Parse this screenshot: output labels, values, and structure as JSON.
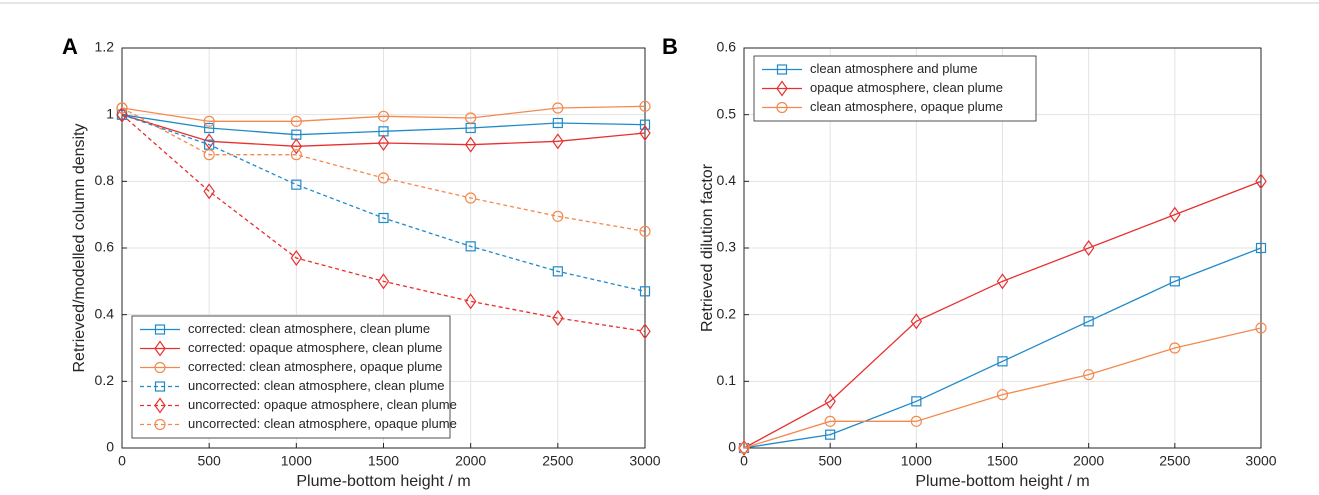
{
  "chart_data": [
    {
      "type": "line",
      "panel_label": "A",
      "xlabel": "Plume-bottom height / m",
      "ylabel": "Retrieved/modelled column density",
      "x": [
        0,
        500,
        1000,
        1500,
        2000,
        2500,
        3000
      ],
      "xlim": [
        0,
        3000
      ],
      "xticks": [
        0,
        500,
        1000,
        1500,
        2000,
        2500,
        3000
      ],
      "ylim": [
        0,
        1.2
      ],
      "yticks": [
        0,
        0.2,
        0.4,
        0.6,
        0.8,
        1,
        1.2
      ],
      "grid": true,
      "legend": "lower left",
      "series": [
        {
          "name": "corrected: clean atmosphere, clean plume",
          "color": "#1f8ac9",
          "marker": "square",
          "dashed": false,
          "values": [
            1.0,
            0.96,
            0.94,
            0.95,
            0.96,
            0.975,
            0.97
          ]
        },
        {
          "name": "corrected: opaque atmosphere, clean plume",
          "color": "#e8302f",
          "marker": "diamond",
          "dashed": false,
          "values": [
            1.0,
            0.92,
            0.905,
            0.915,
            0.91,
            0.92,
            0.945
          ]
        },
        {
          "name": "corrected: clean atmosphere, opaque plume",
          "color": "#f4894f",
          "marker": "circle",
          "dashed": false,
          "values": [
            1.02,
            0.98,
            0.98,
            0.995,
            0.99,
            1.02,
            1.025
          ]
        },
        {
          "name": "uncorrected: clean atmosphere, clean plume",
          "color": "#1f8ac9",
          "marker": "square",
          "dashed": true,
          "values": [
            1.0,
            0.91,
            0.79,
            0.69,
            0.605,
            0.53,
            0.47
          ]
        },
        {
          "name": "uncorrected: opaque atmosphere, clean plume",
          "color": "#e8302f",
          "marker": "diamond",
          "dashed": true,
          "values": [
            1.0,
            0.77,
            0.57,
            0.5,
            0.44,
            0.39,
            0.35
          ]
        },
        {
          "name": "uncorrected: clean atmosphere, opaque plume",
          "color": "#f4894f",
          "marker": "circle",
          "dashed": true,
          "values": [
            1.02,
            0.88,
            0.88,
            0.81,
            0.75,
            0.695,
            0.65
          ]
        }
      ]
    },
    {
      "type": "line",
      "panel_label": "B",
      "xlabel": "Plume-bottom height / m",
      "ylabel": "Retrieved dilution factor",
      "x": [
        0,
        500,
        1000,
        1500,
        2000,
        2500,
        3000
      ],
      "xlim": [
        0,
        3000
      ],
      "xticks": [
        0,
        500,
        1000,
        1500,
        2000,
        2500,
        3000
      ],
      "ylim": [
        0,
        0.6
      ],
      "yticks": [
        0,
        0.1,
        0.2,
        0.3,
        0.4,
        0.5,
        0.6
      ],
      "grid": true,
      "legend": "upper left",
      "series": [
        {
          "name": "clean atmosphere and plume",
          "color": "#1f8ac9",
          "marker": "square",
          "dashed": false,
          "values": [
            0,
            0.02,
            0.07,
            0.13,
            0.19,
            0.25,
            0.3
          ]
        },
        {
          "name": "opaque atmosphere, clean plume",
          "color": "#e8302f",
          "marker": "diamond",
          "dashed": false,
          "values": [
            0,
            0.07,
            0.19,
            0.25,
            0.3,
            0.35,
            0.4
          ]
        },
        {
          "name": "clean atmosphere, opaque plume",
          "color": "#f4894f",
          "marker": "circle",
          "dashed": false,
          "values": [
            0,
            0.04,
            0.04,
            0.08,
            0.11,
            0.15,
            0.18
          ]
        }
      ]
    }
  ]
}
